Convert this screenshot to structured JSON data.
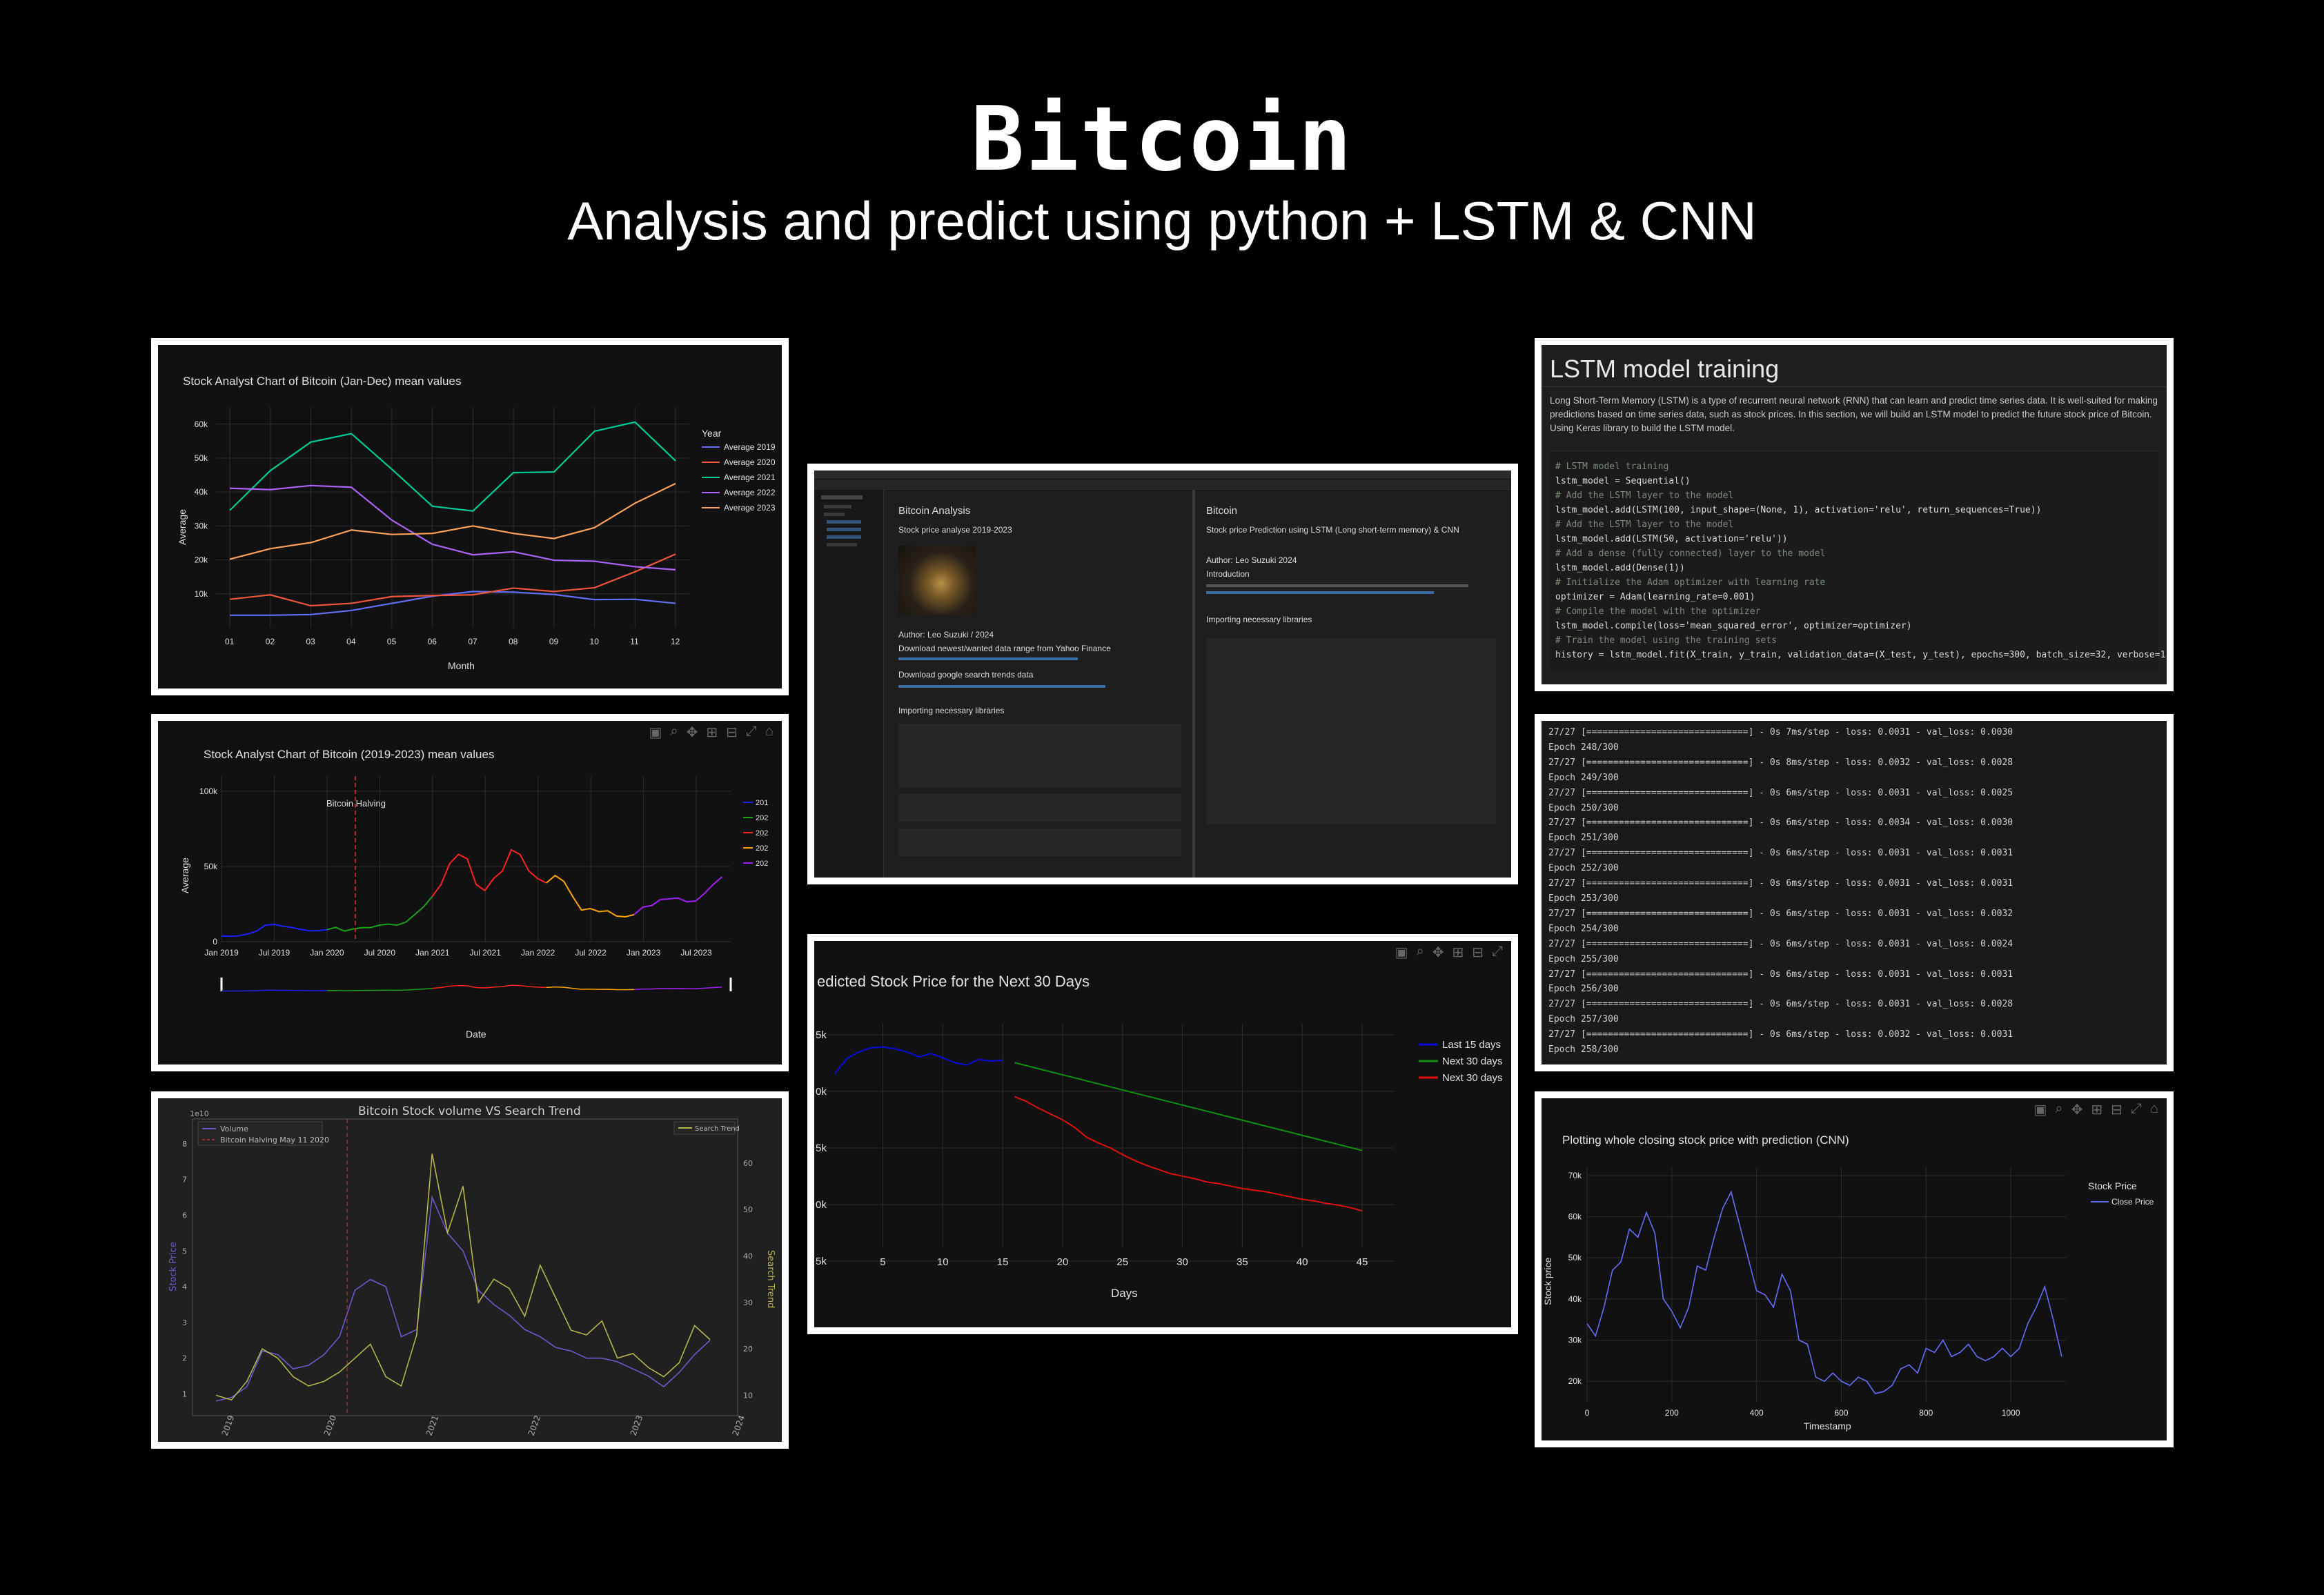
{
  "header": {
    "title": "Bitcoin",
    "subtitle": "Analysis and predict using python + LSTM & CNN"
  },
  "colors": {
    "background": "#000000",
    "plot_bg": "#111111",
    "frame": "#ffffff"
  },
  "panel1": {
    "chart_data": {
      "type": "line",
      "title": "Stock Analyst Chart of Bitcoin (Jan-Dec) mean values",
      "xlabel": "Month",
      "ylabel": "Average",
      "legend_title": "Year",
      "categories": [
        "01",
        "02",
        "03",
        "04",
        "05",
        "06",
        "07",
        "08",
        "09",
        "10",
        "11",
        "12"
      ],
      "y_ticks": [
        "10k",
        "20k",
        "30k",
        "40k",
        "50k",
        "60k"
      ],
      "ylim": [
        0,
        63000
      ],
      "series": [
        {
          "name": "Average 2019",
          "color": "#636efa",
          "values": [
            3700,
            3700,
            3900,
            5100,
            7200,
            9300,
            10700,
            10500,
            9800,
            8300,
            8400,
            7200
          ]
        },
        {
          "name": "Average 2020",
          "color": "#ef553b",
          "values": [
            8400,
            9700,
            6500,
            7200,
            9200,
            9500,
            9700,
            11700,
            10700,
            11800,
            16500,
            21700
          ]
        },
        {
          "name": "Average 2021",
          "color": "#00cc96",
          "values": [
            34600,
            46300,
            54700,
            57200,
            46700,
            35800,
            34400,
            45700,
            45900,
            57900,
            60600,
            49200
          ]
        },
        {
          "name": "Average 2022",
          "color": "#ab63fa",
          "values": [
            41100,
            40700,
            41900,
            41400,
            31700,
            24600,
            21500,
            22400,
            19900,
            19600,
            18000,
            17100
          ]
        },
        {
          "name": "Average 2023",
          "color": "#ffa15a",
          "values": [
            20200,
            23300,
            25100,
            28800,
            27500,
            27800,
            30000,
            27800,
            26300,
            29500,
            36700,
            42500
          ]
        }
      ]
    }
  },
  "panel2": {
    "chart_data": {
      "type": "line",
      "title": "Stock Analyst Chart of Bitcoin (2019-2023) mean values",
      "xlabel": "Date",
      "ylabel": "Average",
      "annotation": "Bitcoin Halving",
      "x_ticks": [
        "Jan 2019",
        "Jul 2019",
        "Jan 2020",
        "Jul 2020",
        "Jan 2021",
        "Jul 2021",
        "Jan 2022",
        "Jul 2022",
        "Jan 2023",
        "Jul 2023"
      ],
      "y_ticks": [
        "0",
        "50k",
        "100k"
      ],
      "ylim": [
        0,
        110000
      ],
      "legend": [
        "201",
        "202",
        "202",
        "202",
        "202"
      ],
      "series": [
        {
          "color": "#1f1fff",
          "points": [
            [
              0,
              3800
            ],
            [
              1,
              3600
            ],
            [
              2,
              3900
            ],
            [
              3,
              5200
            ],
            [
              4,
              7000
            ],
            [
              5,
              11000
            ],
            [
              6,
              11500
            ],
            [
              7,
              10200
            ],
            [
              8,
              9500
            ],
            [
              9,
              8200
            ],
            [
              10,
              7300
            ],
            [
              11,
              7200
            ],
            [
              12,
              8000
            ]
          ]
        },
        {
          "color": "#1aa31a",
          "points": [
            [
              12,
              8000
            ],
            [
              13,
              9500
            ],
            [
              14,
              7000
            ],
            [
              15,
              8500
            ],
            [
              16,
              9300
            ],
            [
              17,
              9400
            ],
            [
              18,
              11000
            ],
            [
              19,
              11700
            ],
            [
              20,
              11000
            ],
            [
              21,
              13000
            ],
            [
              22,
              18000
            ],
            [
              23,
              23000
            ],
            [
              24,
              30000
            ]
          ]
        },
        {
          "color": "#ff2222",
          "points": [
            [
              24,
              30000
            ],
            [
              25,
              38000
            ],
            [
              26,
              52000
            ],
            [
              27,
              58000
            ],
            [
              28,
              55000
            ],
            [
              29,
              38000
            ],
            [
              30,
              34000
            ],
            [
              31,
              42000
            ],
            [
              32,
              47000
            ],
            [
              33,
              61000
            ],
            [
              34,
              58000
            ],
            [
              35,
              47000
            ],
            [
              36,
              42000
            ],
            [
              37,
              39000
            ]
          ]
        },
        {
          "color": "#ffa500",
          "points": [
            [
              37,
              39000
            ],
            [
              38,
              44000
            ],
            [
              39,
              40000
            ],
            [
              40,
              30000
            ],
            [
              41,
              21000
            ],
            [
              42,
              22000
            ],
            [
              43,
              20000
            ],
            [
              44,
              20500
            ],
            [
              45,
              17000
            ],
            [
              46,
              16500
            ],
            [
              47,
              18000
            ]
          ]
        },
        {
          "color": "#a020f0",
          "points": [
            [
              47,
              18000
            ],
            [
              48,
              23000
            ],
            [
              49,
              24000
            ],
            [
              50,
              28000
            ],
            [
              51,
              28500
            ],
            [
              52,
              29000
            ],
            [
              53,
              26500
            ],
            [
              54,
              27000
            ],
            [
              55,
              32000
            ],
            [
              56,
              38000
            ],
            [
              57,
              43000
            ]
          ]
        }
      ]
    }
  },
  "panel3": {
    "chart_data": {
      "type": "line",
      "title": "Bitcoin Stock volume VS Search Trend",
      "ylabel_left": "Stock Price",
      "ylabel_right": "Search Trend",
      "offset_label": "1e10",
      "x_ticks": [
        "2019",
        "2020",
        "2021",
        "2022",
        "2023",
        "2024"
      ],
      "y_ticks_left": [
        "1",
        "2",
        "3",
        "4",
        "5",
        "6",
        "7",
        "8"
      ],
      "y_ticks_right": [
        "10",
        "20",
        "30",
        "40",
        "50",
        "60"
      ],
      "annotation": "Bitcoin Halving May 11 2020",
      "series": [
        {
          "name": "Volume",
          "color": "#6a5acd",
          "values": [
            0.8,
            0.9,
            1.2,
            2.2,
            2.1,
            1.7,
            1.8,
            2.1,
            2.6,
            3.9,
            4.2,
            4.0,
            2.6,
            2.8,
            6.5,
            5.5,
            5.0,
            3.9,
            3.5,
            3.2,
            2.8,
            2.6,
            2.3,
            2.2,
            2.0,
            2.0,
            1.9,
            1.7,
            1.5,
            1.2,
            1.6,
            2.1,
            2.5
          ]
        },
        {
          "name": "Search Trend",
          "color": "#b5b54a",
          "values": [
            10,
            9,
            13,
            20,
            18,
            14,
            12,
            13,
            15,
            18,
            21,
            14,
            12,
            23,
            62,
            45,
            55,
            30,
            35,
            33,
            27,
            38,
            31,
            24,
            23,
            26,
            18,
            19,
            16,
            14,
            17,
            25,
            22
          ]
        }
      ]
    }
  },
  "panel4": {
    "left_cell": {
      "title": "Bitcoin Analysis",
      "subtitle": "Stock price analyse 2019-2023",
      "author": "Author: Leo Suzuki / 2024",
      "h1": "Download newest/wanted data range from Yahoo Finance",
      "h2": "Download google search trends data",
      "h3": "Importing necessary libraries"
    },
    "right_cell": {
      "title": "Bitcoin",
      "subtitle": "Stock price Prediction using LSTM (Long short-term memory) & CNN",
      "author": "Author: Leo Suzuki 2024",
      "h1": "Introduction",
      "h2": "Importing necessary libraries"
    }
  },
  "panel5": {
    "chart_data": {
      "type": "line",
      "title": "edicted Stock Price for the Next 30 Days",
      "xlabel": "Days",
      "x_ticks": [
        "5",
        "10",
        "15",
        "20",
        "25",
        "30",
        "35",
        "40",
        "45"
      ],
      "y_ticks": [
        "5k",
        "0k",
        "5k",
        "0k",
        "5k"
      ],
      "series": [
        {
          "name": "Last 15 days",
          "color": "#0a0adc",
          "values": [
            61.0,
            62.8,
            63.6,
            64.1,
            64.2,
            64.0,
            63.6,
            63.0,
            63.4,
            62.9,
            62.3,
            62.0,
            62.7,
            62.5,
            62.6
          ]
        },
        {
          "name": "Next 30 days",
          "color": "#109010",
          "x": [
            16,
            45
          ],
          "values": [
            62.3,
            51.7
          ]
        },
        {
          "name": "Next 30 days",
          "color": "#e01010",
          "values": [
            58.2,
            57.6,
            56.8,
            56.1,
            55.4,
            54.5,
            53.3,
            52.6,
            52.0,
            51.2,
            50.5,
            49.9,
            49.4,
            48.9,
            48.6,
            48.3,
            47.9,
            47.7,
            47.4,
            47.1,
            46.9,
            46.7,
            46.4,
            46.1,
            45.8,
            45.6,
            45.3,
            45.1,
            44.8,
            44.4
          ]
        }
      ]
    }
  },
  "panel6": {
    "title": "LSTM model training",
    "description": "Long Short-Term Memory (LSTM) is a type of recurrent neural network (RNN) that can learn and predict time series data. It is well-suited for making predictions based on time series data, such as stock prices. In this section, we will build an LSTM model to predict the future stock price of Bitcoin. Using Keras library to build the LSTM model.",
    "code": [
      "# LSTM model training",
      "lstm_model = Sequential()",
      "# Add the LSTM layer to the model",
      "lstm_model.add(LSTM(100, input_shape=(None, 1), activation='relu', return_sequences=True))",
      "# Add the LSTM layer to the model",
      "lstm_model.add(LSTM(50, activation='relu'))",
      "# Add a dense (fully connected) layer to the model",
      "lstm_model.add(Dense(1))",
      "# Initialize the Adam optimizer with learning rate",
      "optimizer = Adam(learning_rate=0.001)",
      "# Compile the model with the optimizer",
      "lstm_model.compile(loss='mean_squared_error', optimizer=optimizer)",
      "# Train the model using the training sets",
      "history = lstm_model.fit(X_train, y_train, validation_data=(X_test, y_test), epochs=300, batch_size=32, verbose=1)"
    ]
  },
  "panel7": {
    "lines": [
      "27/27 [==============================] - 0s 7ms/step - loss: 0.0031 - val_loss: 0.0030",
      "Epoch 248/300",
      "27/27 [==============================] - 0s 8ms/step - loss: 0.0032 - val_loss: 0.0028",
      "Epoch 249/300",
      "27/27 [==============================] - 0s 6ms/step - loss: 0.0031 - val_loss: 0.0025",
      "Epoch 250/300",
      "27/27 [==============================] - 0s 6ms/step - loss: 0.0034 - val_loss: 0.0030",
      "Epoch 251/300",
      "27/27 [==============================] - 0s 6ms/step - loss: 0.0031 - val_loss: 0.0031",
      "Epoch 252/300",
      "27/27 [==============================] - 0s 6ms/step - loss: 0.0031 - val_loss: 0.0031",
      "Epoch 253/300",
      "27/27 [==============================] - 0s 6ms/step - loss: 0.0031 - val_loss: 0.0032",
      "Epoch 254/300",
      "27/27 [==============================] - 0s 6ms/step - loss: 0.0031 - val_loss: 0.0024",
      "Epoch 255/300",
      "27/27 [==============================] - 0s 6ms/step - loss: 0.0031 - val_loss: 0.0031",
      "Epoch 256/300",
      "27/27 [==============================] - 0s 6ms/step - loss: 0.0031 - val_loss: 0.0028",
      "Epoch 257/300",
      "27/27 [==============================] - 0s 6ms/step - loss: 0.0032 - val_loss: 0.0031",
      "Epoch 258/300"
    ]
  },
  "panel8": {
    "chart_data": {
      "type": "line",
      "title": "Plotting whole closing stock price with prediction (CNN)",
      "xlabel": "Timestamp",
      "ylabel": "Stock price",
      "legend_title": "Stock Price",
      "x_ticks": [
        "0",
        "200",
        "400",
        "600",
        "800",
        "1000"
      ],
      "y_ticks": [
        "20k",
        "30k",
        "40k",
        "50k",
        "60k",
        "70k"
      ],
      "xlim": [
        0,
        1130
      ],
      "ylim": [
        15000,
        72000
      ],
      "series": [
        {
          "name": "Close Price",
          "color": "#636efa",
          "x": [
            0,
            20,
            40,
            60,
            80,
            100,
            120,
            140,
            160,
            180,
            200,
            220,
            240,
            260,
            280,
            300,
            320,
            340,
            360,
            380,
            400,
            420,
            440,
            460,
            480,
            500,
            520,
            540,
            560,
            580,
            600,
            620,
            640,
            660,
            680,
            700,
            720,
            740,
            760,
            780,
            800,
            820,
            840,
            860,
            880,
            900,
            920,
            940,
            960,
            980,
            1000,
            1020,
            1040,
            1060,
            1080,
            1100,
            1120
          ],
          "values": [
            34000,
            31000,
            38000,
            47000,
            49000,
            57000,
            55000,
            61000,
            56000,
            40000,
            37000,
            33000,
            38000,
            48000,
            47000,
            55000,
            62000,
            66000,
            58000,
            50000,
            42000,
            41000,
            38000,
            46000,
            42000,
            30000,
            29000,
            21000,
            20000,
            22000,
            20000,
            19000,
            21000,
            20000,
            17000,
            17500,
            19000,
            23000,
            24000,
            22000,
            28000,
            27000,
            30000,
            26000,
            27000,
            29000,
            26000,
            25000,
            26000,
            28000,
            26000,
            28000,
            34000,
            38000,
            43000,
            35000,
            26000
          ]
        }
      ]
    }
  }
}
